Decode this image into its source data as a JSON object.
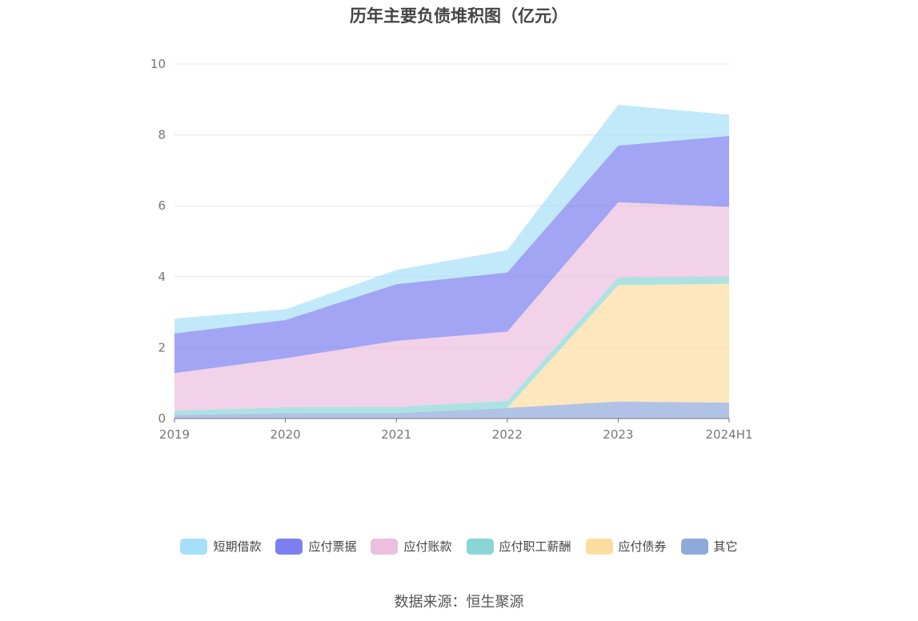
{
  "title": "历年主要负债堆积图（亿元）",
  "source": "数据来源：恒生聚源",
  "chart_data": {
    "type": "area",
    "stacked": true,
    "categories": [
      "2019",
      "2020",
      "2021",
      "2022",
      "2023",
      "2024H1"
    ],
    "ylim": [
      0,
      10
    ],
    "yticks": [
      "0",
      "2",
      "4",
      "6",
      "8",
      "10"
    ],
    "grid": true,
    "legend_position": "bottom",
    "series": [
      {
        "name": "其它",
        "color": "#8eaadb",
        "values": [
          0.1,
          0.15,
          0.15,
          0.3,
          0.48,
          0.45
        ]
      },
      {
        "name": "应付债券",
        "color": "#fddd9f",
        "values": [
          0,
          0,
          0,
          0,
          3.28,
          3.35
        ]
      },
      {
        "name": "应付职工薪酬",
        "color": "#8ad6d6",
        "values": [
          0.12,
          0.17,
          0.18,
          0.2,
          0.22,
          0.2
        ]
      },
      {
        "name": "应付账款",
        "color": "#ecbfde",
        "values": [
          1.06,
          1.38,
          1.86,
          1.95,
          2.12,
          1.97
        ]
      },
      {
        "name": "应付票据",
        "color": "#7b7ff0",
        "values": [
          1.12,
          1.08,
          1.6,
          1.67,
          1.6,
          2.0
        ]
      },
      {
        "name": "短期借款",
        "color": "#a6e0f8",
        "values": [
          0.42,
          0.3,
          0.4,
          0.63,
          1.15,
          0.6
        ]
      }
    ],
    "legend": [
      {
        "name": "短期借款",
        "color": "#a6e0f8"
      },
      {
        "name": "应付票据",
        "color": "#7b7ff0"
      },
      {
        "name": "应付账款",
        "color": "#ecbfde"
      },
      {
        "name": "应付职工薪酬",
        "color": "#8ad6d6"
      },
      {
        "name": "应付债券",
        "color": "#fddd9f"
      },
      {
        "name": "其它",
        "color": "#8eaadb"
      }
    ]
  }
}
